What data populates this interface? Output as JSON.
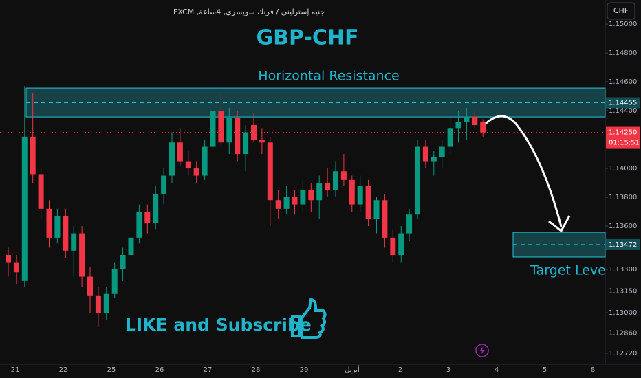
{
  "chart_data": {
    "type": "candlestick",
    "symbol": "جنيه إسترليني / فرنك سويسري, 4ساعة, FXCM",
    "currency_button": "CHF",
    "title": "GBP-CHF",
    "resistance_label": "Horizontal Resistance",
    "target_label": "Target Leve",
    "cta": "LIKE and Subscribe",
    "x_labels": [
      "21",
      "22",
      "25",
      "26",
      "27",
      "28",
      "29",
      "أبريل",
      "2",
      "3",
      "4",
      "5",
      "8"
    ],
    "up_color": "#089981",
    "down_color": "#f23645",
    "zone_color": "#26c6da",
    "candles": {
      "open": [
        1.134,
        1.1335,
        1.1322,
        1.1422,
        1.1396,
        1.1372,
        1.1352,
        1.1367,
        1.1343,
        1.1355,
        1.1325,
        1.1312,
        1.13,
        1.1313,
        1.133,
        1.134,
        1.1352,
        1.137,
        1.1362,
        1.1382,
        1.1395,
        1.1418,
        1.1405,
        1.14,
        1.1395,
        1.1415,
        1.144,
        1.1418,
        1.1435,
        1.141,
        1.143,
        1.142,
        1.1418,
        1.1378,
        1.1372,
        1.138,
        1.1375,
        1.1385,
        1.1378,
        1.139,
        1.1385,
        1.1398,
        1.1392,
        1.1375,
        1.1388,
        1.1365,
        1.1378,
        1.1352,
        1.134,
        1.1355,
        1.1368,
        1.1415,
        1.1405,
        1.1408,
        1.1415,
        1.1428,
        1.1432,
        1.1436,
        1.1432
      ],
      "high": [
        1.1345,
        1.134,
        1.1457,
        1.1452,
        1.14,
        1.1378,
        1.1372,
        1.1372,
        1.136,
        1.136,
        1.1332,
        1.1318,
        1.1318,
        1.1335,
        1.1345,
        1.136,
        1.1375,
        1.1375,
        1.1388,
        1.14,
        1.1425,
        1.1428,
        1.1412,
        1.1405,
        1.142,
        1.1448,
        1.1452,
        1.1442,
        1.144,
        1.143,
        1.1438,
        1.1428,
        1.1422,
        1.1385,
        1.1388,
        1.1385,
        1.1392,
        1.139,
        1.1395,
        1.14,
        1.1405,
        1.141,
        1.1395,
        1.1395,
        1.1392,
        1.138,
        1.1382,
        1.1358,
        1.136,
        1.1372,
        1.142,
        1.142,
        1.1412,
        1.142,
        1.1435,
        1.144,
        1.1442,
        1.144,
        1.1434
      ],
      "low": [
        1.1325,
        1.132,
        1.1318,
        1.139,
        1.1365,
        1.1345,
        1.1348,
        1.1338,
        1.1325,
        1.1318,
        1.13,
        1.129,
        1.1295,
        1.131,
        1.1322,
        1.1335,
        1.1348,
        1.1355,
        1.1358,
        1.1375,
        1.139,
        1.1402,
        1.1395,
        1.139,
        1.1392,
        1.141,
        1.1415,
        1.141,
        1.1405,
        1.1398,
        1.1418,
        1.141,
        1.136,
        1.1365,
        1.1368,
        1.1368,
        1.137,
        1.137,
        1.1365,
        1.138,
        1.138,
        1.1388,
        1.137,
        1.137,
        1.136,
        1.1355,
        1.1345,
        1.1335,
        1.1335,
        1.135,
        1.1365,
        1.14,
        1.1395,
        1.14,
        1.141,
        1.1418,
        1.142,
        1.1428,
        1.1422
      ],
      "close": [
        1.1335,
        1.1328,
        1.1422,
        1.1396,
        1.1372,
        1.1352,
        1.1367,
        1.1343,
        1.1355,
        1.1325,
        1.1312,
        1.13,
        1.1313,
        1.133,
        1.134,
        1.1352,
        1.137,
        1.1362,
        1.1382,
        1.1395,
        1.1418,
        1.1405,
        1.14,
        1.1395,
        1.1415,
        1.144,
        1.1418,
        1.1435,
        1.141,
        1.1425,
        1.142,
        1.1418,
        1.1378,
        1.1372,
        1.138,
        1.1375,
        1.1385,
        1.1378,
        1.139,
        1.1385,
        1.1398,
        1.1392,
        1.1375,
        1.1388,
        1.1365,
        1.1378,
        1.1352,
        1.134,
        1.1355,
        1.1368,
        1.1415,
        1.1405,
        1.1408,
        1.1415,
        1.1428,
        1.1432,
        1.1436,
        1.143,
        1.1425
      ]
    },
    "resistance_zone": {
      "low": 1.14357,
      "high": 1.14557,
      "level": {
        "value": 1.14455,
        "label": "1.14455"
      }
    },
    "target_zone": {
      "low": 1.13386,
      "high": 1.13557,
      "level": {
        "value": 1.13472,
        "label": "1.13472"
      }
    },
    "last_price": {
      "value": 1.1425,
      "label": "1.14250"
    },
    "countdown": "01:15:51",
    "ylim": [
      1.12643,
      1.15167
    ],
    "yticks": [
      {
        "value": 1.15,
        "label": "1.15000"
      },
      {
        "value": 1.148,
        "label": "1.14800"
      },
      {
        "value": 1.146,
        "label": "1.14600"
      },
      {
        "value": 1.144,
        "label": "1.14400"
      },
      {
        "value": 1.14,
        "label": "1.14000"
      },
      {
        "value": 1.138,
        "label": "1.13800"
      },
      {
        "value": 1.136,
        "label": "1.13600"
      },
      {
        "value": 1.133,
        "label": "1.13300"
      },
      {
        "value": 1.1315,
        "label": "1.13150"
      },
      {
        "value": 1.13,
        "label": "1.13000"
      },
      {
        "value": 1.1286,
        "label": "1.12860"
      },
      {
        "value": 1.1272,
        "label": "1.12720"
      }
    ]
  }
}
